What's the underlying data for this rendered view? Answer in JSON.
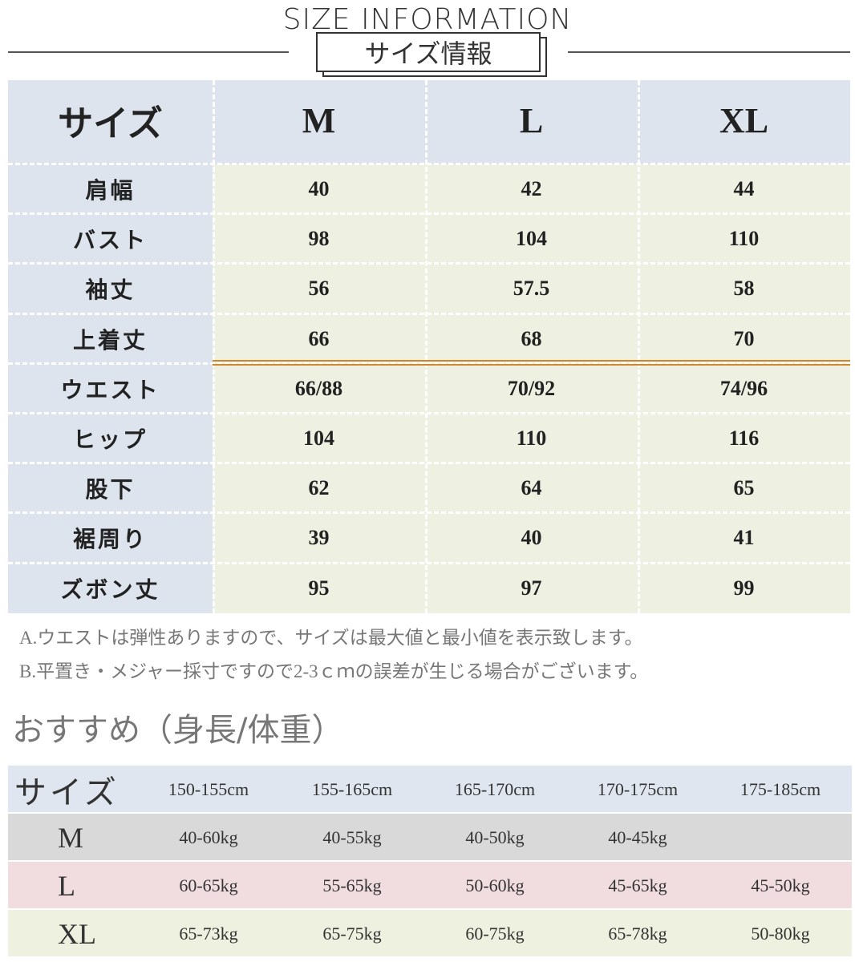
{
  "header": {
    "title": "SIZE INFORMATION",
    "subtitle": "サイズ情報"
  },
  "table": {
    "header": [
      "サイズ",
      "M",
      "L",
      "XL"
    ],
    "rows": [
      [
        "肩幅",
        "40",
        "42",
        "44"
      ],
      [
        "バスト",
        "98",
        "104",
        "110"
      ],
      [
        "袖丈",
        "56",
        "57.5",
        "58"
      ],
      [
        "上着丈",
        "66",
        "68",
        "70"
      ],
      [
        "ウエスト",
        "66/88",
        "70/92",
        "74/96"
      ],
      [
        "ヒップ",
        "104",
        "110",
        "116"
      ],
      [
        "股下",
        "62",
        "64",
        "65"
      ],
      [
        "裾周り",
        "39",
        "40",
        "41"
      ],
      [
        "ズボン丈",
        "95",
        "97",
        "99"
      ]
    ]
  },
  "notes": [
    "A.ウエストは弾性ありますので、サイズは最大値と最小値を表示致します。",
    "B.平置き・メジャー採寸ですので2-3ｃｍの誤差が生じる場合がございます。"
  ],
  "recommend": {
    "title": "おすすめ（身長/体重）",
    "header": [
      "サイズ",
      "150-155cm",
      "155-165cm",
      "165-170cm",
      "170-175cm",
      "175-185cm"
    ],
    "rows": [
      [
        "M",
        "40-60kg",
        "40-55kg",
        "40-50kg",
        "40-45kg"
      ],
      [
        "L",
        "60-65kg",
        "55-65kg",
        "50-60kg",
        "45-65kg",
        "45-50kg"
      ],
      [
        "XL",
        "65-73kg",
        "65-75kg",
        "60-75kg",
        "65-78kg",
        "50-80kg"
      ]
    ]
  }
}
